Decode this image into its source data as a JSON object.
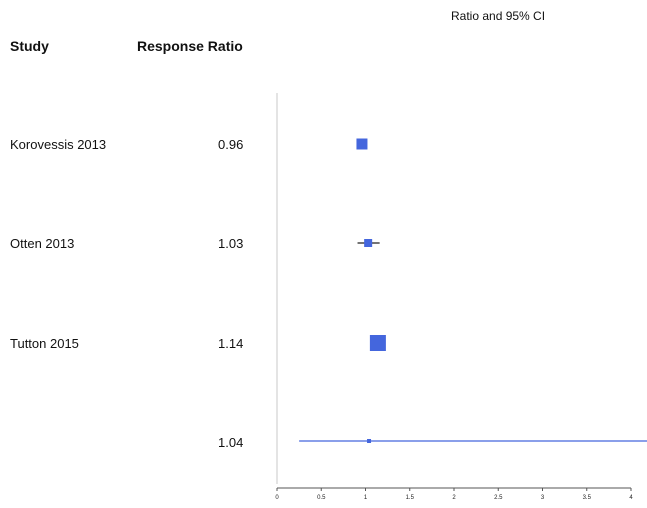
{
  "header": {
    "study_label": "Study",
    "ratio_label": "Response Ratio",
    "ci_label": "Ratio and 95% CI"
  },
  "chart_data": {
    "type": "forest",
    "xlim": [
      0,
      4.2
    ],
    "tick_labels": [
      "0",
      "0.5",
      "1",
      "1.5",
      "2",
      "2.5",
      "3",
      "3.5",
      "4"
    ],
    "tick_values": [
      0,
      0.5,
      1,
      1.5,
      2,
      2.5,
      3,
      3.5,
      4
    ],
    "reference_line": 0,
    "studies": [
      {
        "name": "Korovessis 2013",
        "ratio_text": "0.96",
        "ratio": 0.96,
        "lower": 0.96,
        "upper": 0.96,
        "weight": "medium"
      },
      {
        "name": "Otten 2013",
        "ratio_text": "1.03",
        "ratio": 1.03,
        "lower": 0.91,
        "upper": 1.16,
        "weight": "small"
      },
      {
        "name": "Tutton 2015",
        "ratio_text": "1.14",
        "ratio": 1.14,
        "lower": 1.14,
        "upper": 1.14,
        "weight": "large"
      },
      {
        "name": "",
        "ratio_text": "1.04",
        "ratio": 1.04,
        "lower": 0.25,
        "upper": 4.2,
        "weight": "tiny"
      }
    ],
    "colors": {
      "marker": "#4466dd",
      "axis": "#555555"
    }
  }
}
